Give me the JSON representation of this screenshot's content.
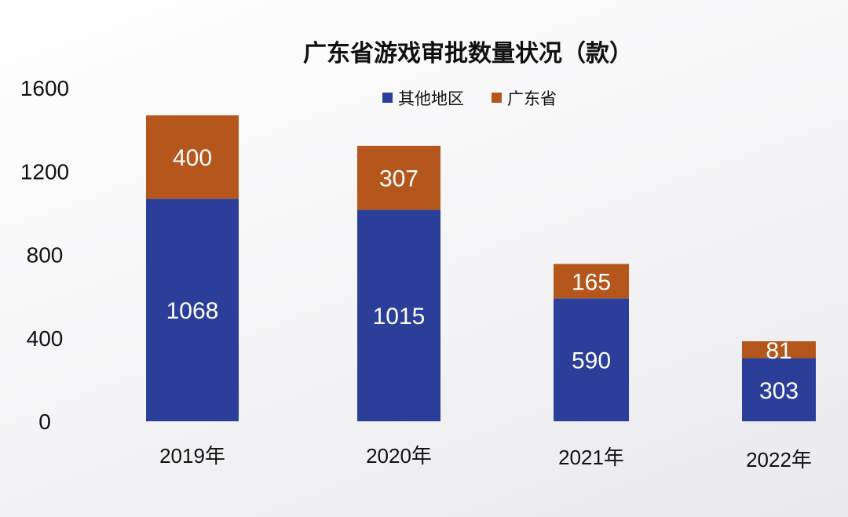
{
  "chart_data": {
    "type": "bar",
    "stacked": true,
    "title": "广东省游戏审批数量状况（款）",
    "xlabel": "",
    "ylabel": "",
    "categories": [
      "2019年",
      "2020年",
      "2021年",
      "2022年"
    ],
    "series": [
      {
        "name": "其他地区",
        "color": "#2b3f9a",
        "values": [
          1068,
          1015,
          590,
          303
        ]
      },
      {
        "name": "广东省",
        "color": "#b5571c",
        "values": [
          400,
          307,
          165,
          81
        ]
      }
    ],
    "yticks": [
      0,
      400,
      800,
      1200,
      1600
    ],
    "ytick_labels": [
      "0",
      "400",
      "800",
      "1200",
      "1600"
    ],
    "ylim": [
      0,
      1600
    ],
    "grid": false,
    "legend_position": "top"
  }
}
